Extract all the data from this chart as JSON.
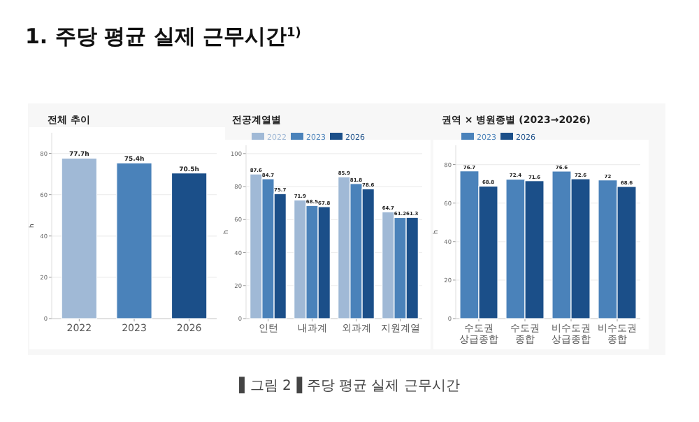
{
  "chart_data": [
    {
      "type": "other",
      "title": "1. 주당 평균 실제 근무시간$^{1)}$",
      "annotations": [
        "▌그림 2▐ 주당 평균 실제 근무시간"
      ]
    },
    {
      "type": "bar",
      "title": "전체 추이",
      "ylabel": "h",
      "categories": [
        "2022",
        "2023",
        "2026"
      ],
      "values": [
        77.7,
        75.4,
        70.5
      ],
      "colors": [
        "#a0b9d6",
        "#4a82ba",
        "#1b4f89"
      ],
      "value_labels": [
        "77.7h",
        "75.4h",
        "70.5h"
      ],
      "ylim": [
        0,
        90
      ],
      "yticks": [
        0,
        20,
        40,
        60,
        80
      ],
      "grid": "y"
    },
    {
      "type": "bar",
      "title": "전공계열별",
      "ylabel": "h",
      "categories": [
        "인턴",
        "내과계",
        "외과계",
        "지원계열"
      ],
      "series": [
        {
          "name": "2022",
          "color": "#a0b9d6",
          "values": [
            87.6,
            71.9,
            85.9,
            64.7
          ]
        },
        {
          "name": "2023",
          "color": "#4a82ba",
          "values": [
            84.7,
            68.5,
            81.8,
            61.2
          ]
        },
        {
          "name": "2026",
          "color": "#1b4f89",
          "values": [
            75.7,
            67.8,
            78.6,
            61.3
          ]
        }
      ],
      "ylim": [
        0,
        105
      ],
      "yticks": [
        0,
        20,
        40,
        60,
        80,
        100
      ],
      "grid": "y",
      "legend": "top left",
      "data_labels": true
    },
    {
      "type": "bar",
      "title": "권역 × 병원종별 (2023→2026)",
      "ylabel": "h",
      "categories": [
        "수도권\n상급종합",
        "수도권\n종합",
        "비수도권\n상급종합",
        "비수도권\n종합"
      ],
      "series": [
        {
          "name": "2023",
          "color": "#4a82ba",
          "values": [
            76.7,
            72.4,
            76.6,
            72.0
          ]
        },
        {
          "name": "2026",
          "color": "#1b4f89",
          "values": [
            68.8,
            71.6,
            72.6,
            68.6
          ]
        }
      ],
      "ylim": [
        0,
        90
      ],
      "yticks": [
        0,
        20,
        40,
        60,
        80
      ],
      "grid": "y",
      "legend": "top left",
      "data_labels": true
    }
  ]
}
